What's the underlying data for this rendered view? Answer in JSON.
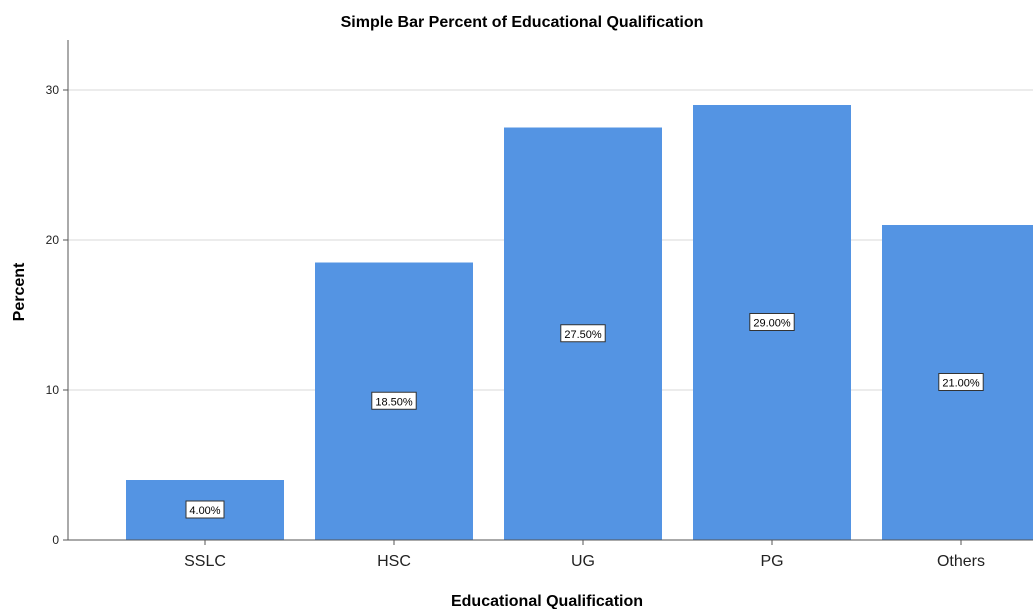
{
  "chart_data": {
    "type": "bar",
    "title": "Simple Bar Percent of Educational Qualification",
    "xlabel": "Educational Qualification",
    "ylabel": "Percent",
    "categories": [
      "SSLC",
      "HSC",
      "UG",
      "PG",
      "Others"
    ],
    "values": [
      4.0,
      18.5,
      27.5,
      29.0,
      21.0
    ],
    "data_labels": [
      "4.00%",
      "18.50%",
      "27.50%",
      "29.00%",
      "21.00%"
    ],
    "yticks": [
      0,
      10,
      20,
      30
    ],
    "ylim": [
      0,
      33
    ],
    "grid": true,
    "bar_color": "#5494e3",
    "grid_color": "#d9d9d9"
  }
}
